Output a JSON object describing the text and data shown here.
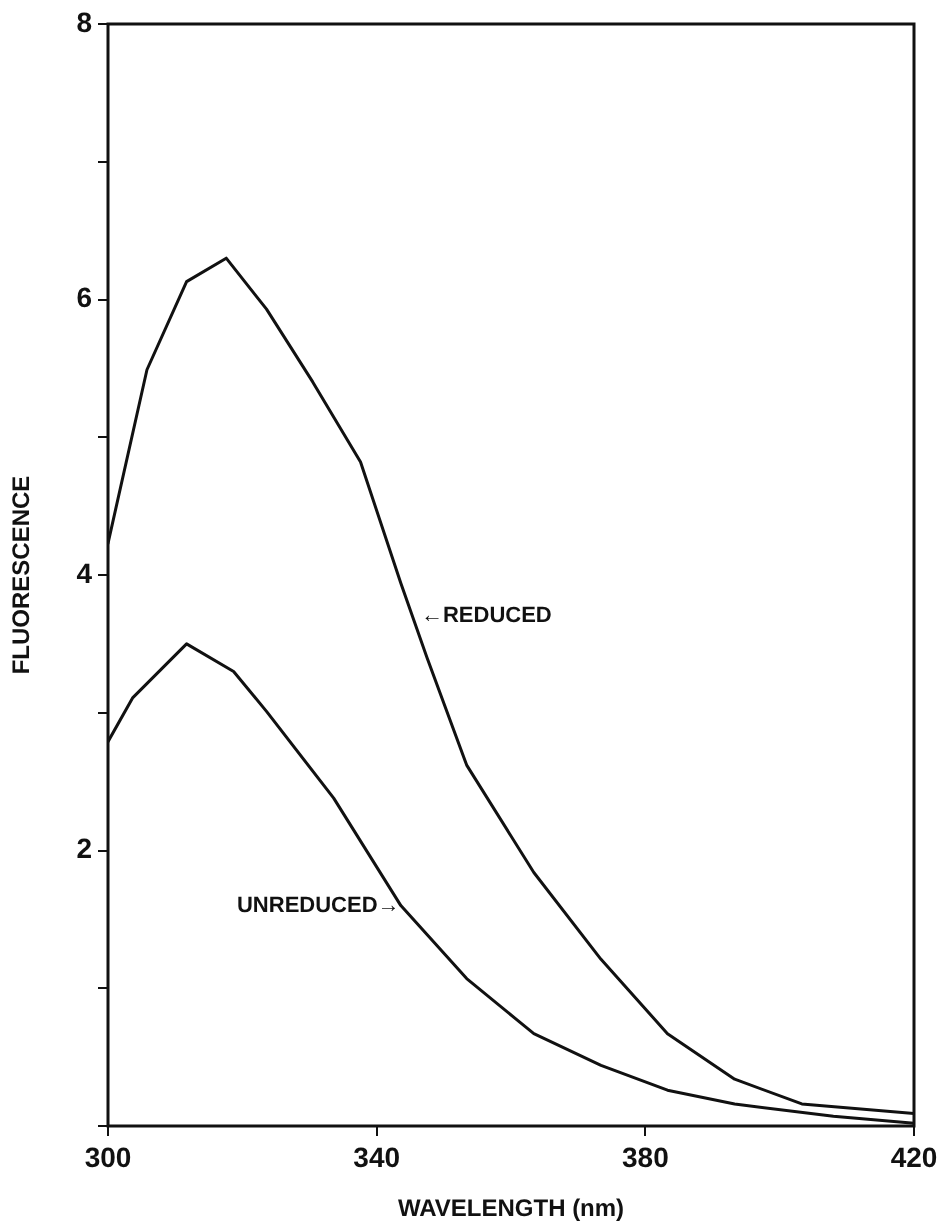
{
  "chart_data": {
    "type": "line",
    "xlabel": "WAVELENGTH (nm)",
    "ylabel": "FLUORESCENCE",
    "series": [
      {
        "color": "#111111",
        "x": [
          300,
          305.8,
          311.7,
          317.6,
          323.6,
          330.5,
          337.6,
          343.6,
          347.5,
          353.4,
          363.4,
          373.4,
          383.3,
          393.3,
          403.3,
          420
        ],
        "values": [
          4.23,
          5.49,
          6.13,
          6.3,
          5.93,
          5.4,
          4.82,
          3.94,
          3.4,
          2.62,
          1.84,
          1.21,
          0.67,
          0.34,
          0.16,
          0.09
        ]
      },
      {
        "color": "#111111",
        "x": [
          300,
          303.7,
          311.7,
          318.7,
          323.6,
          333.6,
          343.6,
          353.4,
          363.4,
          373.4,
          383.3,
          393.3,
          408,
          420
        ],
        "values": [
          2.79,
          3.11,
          3.5,
          3.3,
          3.01,
          2.38,
          1.6,
          1.07,
          0.67,
          0.44,
          0.26,
          0.16,
          0.07,
          0.02
        ]
      }
    ],
    "xlim": [
      300,
      420
    ],
    "xticks": [
      300,
      340,
      380,
      420
    ],
    "ylim": [
      0,
      8
    ],
    "yticks": [
      {
        "value": 0,
        "label": null
      },
      {
        "value": 1,
        "label": null
      },
      2,
      {
        "value": 3,
        "label": null
      },
      4,
      {
        "value": 5,
        "label": null
      },
      6,
      {
        "value": 7,
        "label": null
      },
      8
    ],
    "annotations": [
      {
        "text": "←REDUCED",
        "x": 346,
        "y": 3.7
      },
      {
        "text": "UNREDUCED→",
        "x": 344,
        "y": 1.6
      }
    ],
    "grid": false,
    "legend": false,
    "marker": "none",
    "line_style": "solid"
  }
}
